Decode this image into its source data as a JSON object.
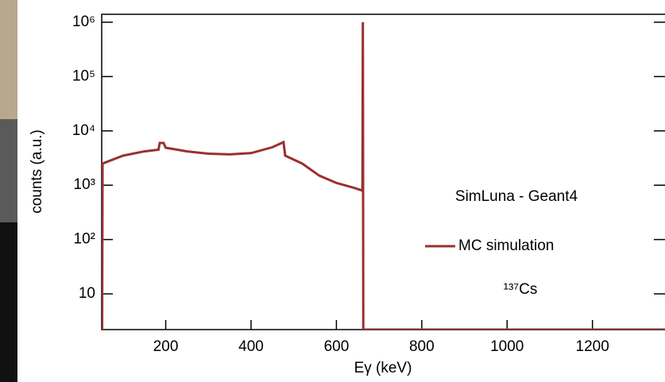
{
  "chart_data": {
    "type": "line",
    "annotations": [
      "SimLuna - Geant4",
      "¹³⁷Cs"
    ],
    "x_label": "Eγ (keV)",
    "y_label": "counts (a.u.)",
    "log_y": true,
    "xlim": [
      50,
      1370
    ],
    "ylim": [
      2.2,
      1400000
    ],
    "xticks": [
      200,
      400,
      600,
      800,
      1000,
      1200
    ],
    "yticks": [
      10,
      {
        "value": 100,
        "label": "10²"
      },
      {
        "value": 1000,
        "label": "10³"
      },
      {
        "value": 10000,
        "label": "10⁴"
      },
      {
        "value": 100000,
        "label": "10⁵"
      },
      {
        "value": 1000000,
        "label": "10⁶"
      }
    ],
    "series": [
      {
        "name": "MC simulation",
        "color": "#9b3030",
        "x": [
          51,
          52,
          100,
          150,
          183,
          186,
          195,
          200,
          250,
          300,
          350,
          400,
          450,
          476,
          480,
          520,
          560,
          600,
          640,
          660,
          661,
          662,
          663,
          1370
        ],
        "values": [
          2.2,
          2500,
          3500,
          4200,
          4500,
          6000,
          6000,
          4900,
          4200,
          3800,
          3700,
          3900,
          5000,
          6200,
          3500,
          2500,
          1500,
          1100,
          900,
          800,
          800,
          1000000,
          2.2,
          2.2
        ]
      }
    ],
    "legend": "inside"
  }
}
